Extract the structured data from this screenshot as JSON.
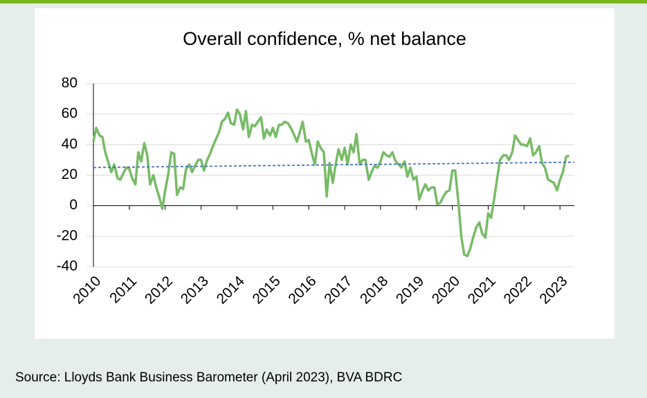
{
  "chart_data": {
    "type": "line",
    "title": "Overall confidence, % net balance",
    "source": "Source: Lloyds Bank Business Barometer (April 2023), BVA BDRC",
    "x": [
      2010,
      2010.08,
      2010.17,
      2010.25,
      2010.33,
      2010.42,
      2010.5,
      2010.58,
      2010.67,
      2010.75,
      2010.83,
      2010.92,
      2011,
      2011.08,
      2011.17,
      2011.25,
      2011.33,
      2011.42,
      2011.5,
      2011.58,
      2011.67,
      2011.75,
      2011.83,
      2011.92,
      2012,
      2012.08,
      2012.17,
      2012.25,
      2012.33,
      2012.42,
      2012.5,
      2012.58,
      2012.67,
      2012.75,
      2012.83,
      2012.92,
      2013,
      2013.08,
      2013.17,
      2013.25,
      2013.33,
      2013.42,
      2013.5,
      2013.58,
      2013.67,
      2013.75,
      2013.83,
      2013.92,
      2014,
      2014.08,
      2014.17,
      2014.25,
      2014.33,
      2014.42,
      2014.5,
      2014.58,
      2014.67,
      2014.75,
      2014.83,
      2014.92,
      2015,
      2015.08,
      2015.17,
      2015.25,
      2015.33,
      2015.42,
      2015.5,
      2015.58,
      2015.67,
      2015.75,
      2015.83,
      2015.92,
      2016,
      2016.08,
      2016.17,
      2016.25,
      2016.33,
      2016.42,
      2016.5,
      2016.58,
      2016.67,
      2016.75,
      2016.83,
      2016.92,
      2017,
      2017.08,
      2017.17,
      2017.25,
      2017.33,
      2017.42,
      2017.5,
      2017.58,
      2017.67,
      2017.75,
      2017.83,
      2017.92,
      2018,
      2018.08,
      2018.17,
      2018.25,
      2018.33,
      2018.42,
      2018.5,
      2018.58,
      2018.67,
      2018.75,
      2018.83,
      2018.92,
      2019,
      2019.08,
      2019.17,
      2019.25,
      2019.33,
      2019.42,
      2019.5,
      2019.58,
      2019.67,
      2019.75,
      2019.83,
      2019.92,
      2020,
      2020.08,
      2020.17,
      2020.25,
      2020.33,
      2020.42,
      2020.5,
      2020.58,
      2020.67,
      2020.75,
      2020.83,
      2020.92,
      2021,
      2021.08,
      2021.17,
      2021.25,
      2021.33,
      2021.42,
      2021.5,
      2021.58,
      2021.67,
      2021.75,
      2021.83,
      2021.92,
      2022,
      2022.08,
      2022.17,
      2022.25,
      2022.33,
      2022.42,
      2022.5,
      2022.58,
      2022.67,
      2022.75,
      2022.83,
      2022.92,
      2023,
      2023.08,
      2023.17,
      2023.25
    ],
    "series": [
      {
        "color": "#77bb66",
        "values": [
          42,
          51,
          46,
          45,
          35,
          28,
          22,
          27,
          18,
          17,
          21,
          25,
          24,
          18,
          14,
          35,
          29,
          41,
          33,
          14,
          20,
          12,
          6,
          -2,
          10,
          20,
          35,
          34,
          7,
          12,
          11,
          24,
          27,
          22,
          26,
          30,
          30,
          23,
          30,
          34,
          39,
          44,
          48,
          55,
          57,
          61,
          54,
          53,
          63,
          60,
          50,
          62,
          45,
          53,
          52,
          55,
          58,
          44,
          50,
          46,
          51,
          45,
          53,
          53,
          55,
          54,
          51,
          47,
          42,
          48,
          55,
          42,
          43,
          35,
          27,
          42,
          38,
          35,
          6,
          28,
          15,
          27,
          37,
          30,
          38,
          27,
          40,
          35,
          47,
          27,
          30,
          30,
          17,
          22,
          26,
          25,
          29,
          35,
          33,
          32,
          35,
          29,
          27,
          25,
          29,
          19,
          25,
          17,
          19,
          4,
          10,
          14,
          10,
          12,
          12,
          1,
          2,
          6,
          9,
          10,
          23,
          23,
          2,
          -20,
          -32,
          -33,
          -28,
          -21,
          -14,
          -11,
          -18,
          -21,
          -5,
          -8,
          5,
          18,
          30,
          33,
          33,
          30,
          35,
          46,
          43,
          40,
          40,
          39,
          44,
          33,
          35,
          39,
          28,
          25,
          17,
          16,
          15,
          10,
          17,
          22,
          32,
          33
        ]
      }
    ],
    "trendline": {
      "color": "#4472c4",
      "x": [
        2010,
        2023.4
      ],
      "values": [
        25,
        28.5
      ]
    },
    "xlim": [
      2010,
      2023.4
    ],
    "xticks": [
      2010,
      2011,
      2012,
      2013,
      2014,
      2015,
      2016,
      2017,
      2018,
      2019,
      2020,
      2021,
      2022,
      2023
    ],
    "ylim": [
      -40,
      80
    ],
    "yticks": [
      -40,
      -20,
      0,
      20,
      40,
      60,
      80
    ],
    "grid": true
  }
}
